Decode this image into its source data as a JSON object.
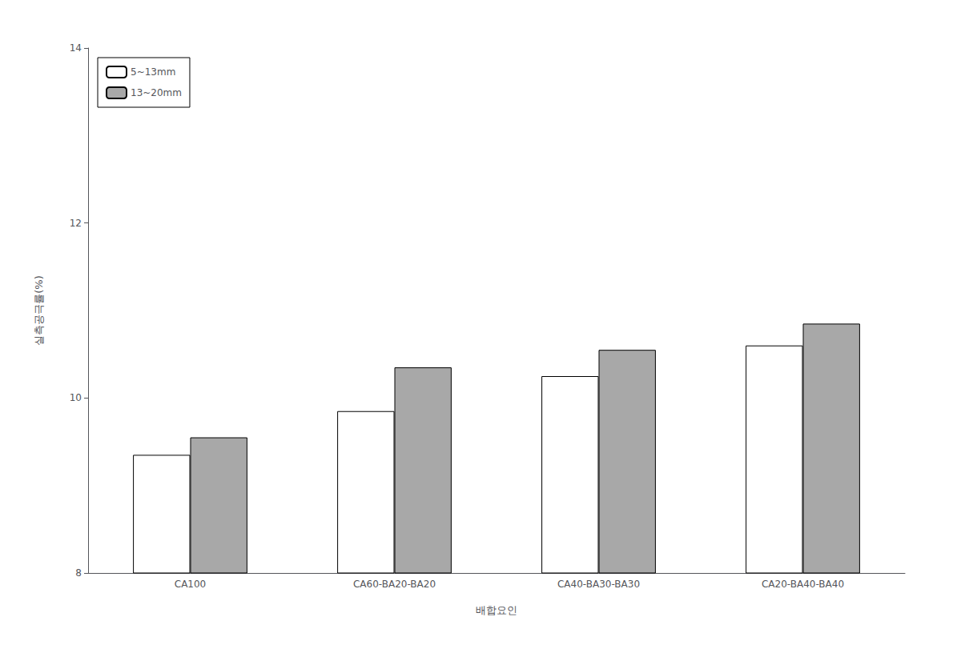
{
  "chart_data": {
    "type": "bar",
    "categories": [
      "CA100",
      "CA60-BA20-BA20",
      "CA40-BA30-BA30",
      "CA20-BA40-BA40"
    ],
    "series": [
      {
        "name": "5~13mm",
        "color": "#ffffff",
        "values": [
          9.35,
          9.85,
          10.25,
          10.6
        ]
      },
      {
        "name": "13~20mm",
        "color": "#a8a8a8",
        "values": [
          9.55,
          10.35,
          10.55,
          10.85
        ]
      }
    ],
    "xlabel": "배합요인",
    "ylabel": "실측공극률(%)",
    "ylim": [
      8,
      14
    ],
    "yticks": [
      8,
      10,
      12,
      14
    ],
    "grid": false,
    "legend": "upper left"
  }
}
